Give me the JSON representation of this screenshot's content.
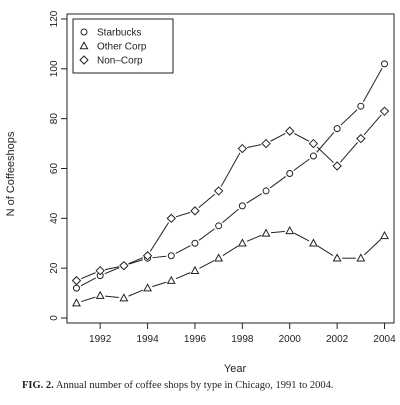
{
  "figure": {
    "caption_label": "FIG. 2.",
    "caption_text": "Annual number of coffee shops by type in Chicago, 1991 to 2004."
  },
  "chart_data": {
    "type": "line",
    "title": "",
    "xlabel": "Year",
    "ylabel": "N of Coffeeshops",
    "x": [
      1991,
      1992,
      1993,
      1994,
      1995,
      1996,
      1997,
      1998,
      1999,
      2000,
      2001,
      2002,
      2003,
      2004
    ],
    "xlim": [
      1990.6,
      2004.4
    ],
    "ylim": [
      -2,
      122
    ],
    "xticks": [
      1992,
      1994,
      1996,
      1998,
      2000,
      2002,
      2004
    ],
    "yticks": [
      0,
      20,
      40,
      60,
      80,
      100,
      120
    ],
    "grid": false,
    "legend": {
      "placement": "top-left"
    },
    "series": [
      {
        "name": "Starbucks",
        "marker": "circle",
        "values": [
          12,
          17,
          21,
          24,
          25,
          30,
          37,
          45,
          51,
          58,
          65,
          76,
          85,
          102
        ]
      },
      {
        "name": "Other Corp",
        "marker": "triangle",
        "values": [
          6,
          9,
          8,
          12,
          15,
          19,
          24,
          30,
          34,
          35,
          30,
          24,
          24,
          33
        ]
      },
      {
        "name": "Non–Corp",
        "marker": "diamond",
        "values": [
          15,
          19,
          21,
          25,
          40,
          43,
          51,
          68,
          70,
          75,
          70,
          61,
          72,
          83
        ]
      }
    ]
  }
}
